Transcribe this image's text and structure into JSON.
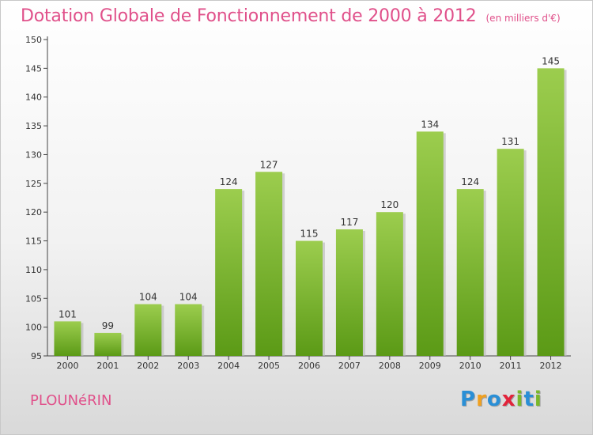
{
  "header": {
    "title": "Dotation Globale de Fonctionnement de 2000 à 2012",
    "unit": "(en milliers d'€)"
  },
  "footer": {
    "commune": "PLOUNéRIN",
    "logo_letters": [
      {
        "char": "P",
        "color": "#2a8fd6"
      },
      {
        "char": "r",
        "color": "#f0a020"
      },
      {
        "char": "o",
        "color": "#2a8fd6"
      },
      {
        "char": "x",
        "color": "#e2233a"
      },
      {
        "char": "i",
        "color": "#7ab82a"
      },
      {
        "char": "t",
        "color": "#2a8fd6"
      },
      {
        "char": "i",
        "color": "#7ab82a"
      }
    ]
  },
  "colors": {
    "bar_top": "#9ccd4e",
    "bar_bottom": "#5b9a16",
    "title": "#e0508a"
  },
  "chart_data": {
    "type": "bar",
    "title": "Dotation Globale de Fonctionnement de 2000 à 2012",
    "subtitle": "(en milliers d'€)",
    "xlabel": "",
    "ylabel": "",
    "categories": [
      "2000",
      "2001",
      "2002",
      "2003",
      "2004",
      "2005",
      "2006",
      "2007",
      "2008",
      "2009",
      "2010",
      "2011",
      "2012"
    ],
    "values": [
      101,
      99,
      104,
      104,
      124,
      127,
      115,
      117,
      120,
      134,
      124,
      131,
      145
    ],
    "ylim": [
      95,
      150
    ],
    "yticks": [
      95,
      100,
      105,
      110,
      115,
      120,
      125,
      130,
      135,
      140,
      145,
      150
    ],
    "grid": false
  }
}
